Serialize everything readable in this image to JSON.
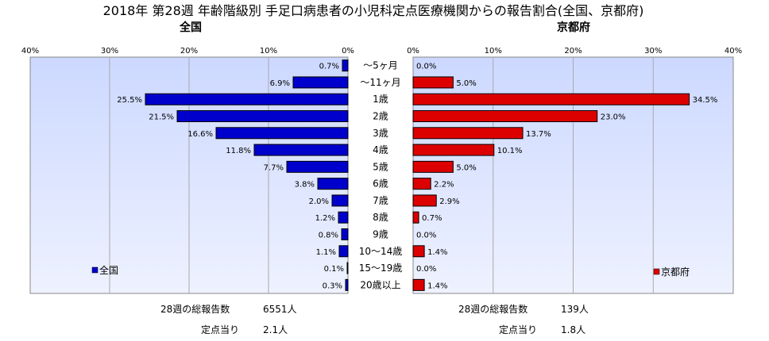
{
  "title": "2018年 第28週 年齢階級別 手足口病患者の小児科定点医療機関からの報告割合(全国、京都府)",
  "chart_data": [
    {
      "type": "bar",
      "orientation": "horizontal",
      "reversed_axis": true,
      "title": "全国",
      "xlim": [
        0,
        40
      ],
      "ticks": [
        "0%",
        "10%",
        "20%",
        "30%",
        "40%"
      ],
      "categories": [
        "～5ヶ月",
        "～11ヶ月",
        "1歳",
        "2歳",
        "3歳",
        "4歳",
        "5歳",
        "6歳",
        "7歳",
        "8歳",
        "9歳",
        "10～14歳",
        "15～19歳",
        "20歳以上"
      ],
      "series": [
        {
          "name": "全国",
          "values": [
            0.7,
            6.9,
            25.5,
            21.5,
            16.6,
            11.8,
            7.7,
            3.8,
            2.0,
            1.2,
            0.8,
            1.1,
            0.1,
            0.3
          ]
        }
      ],
      "value_labels": [
        "0.7%",
        "6.9%",
        "25.5%",
        "21.5%",
        "16.6%",
        "11.8%",
        "7.7%",
        "3.8%",
        "2.0%",
        "1.2%",
        "0.8%",
        "1.1%",
        "0.1%",
        "0.3%"
      ],
      "color": "#0000cc",
      "legend": "bottom-left",
      "grid": true
    },
    {
      "type": "bar",
      "orientation": "horizontal",
      "title": "京都府",
      "xlim": [
        0,
        40
      ],
      "ticks": [
        "0%",
        "10%",
        "20%",
        "30%",
        "40%"
      ],
      "series": [
        {
          "name": "京都府",
          "values": [
            0.0,
            5.0,
            34.5,
            23.0,
            13.7,
            10.1,
            5.0,
            2.2,
            2.9,
            0.7,
            0.0,
            1.4,
            0.0,
            1.4
          ]
        }
      ],
      "value_labels": [
        "0.0%",
        "5.0%",
        "34.5%",
        "23.0%",
        "13.7%",
        "10.1%",
        "5.0%",
        "2.2%",
        "2.9%",
        "0.7%",
        "0.0%",
        "1.4%",
        "0.0%",
        "1.4%"
      ],
      "color": "#dd0000",
      "legend": "bottom-right",
      "grid": true
    }
  ],
  "footer": {
    "national": {
      "total_label": "28週の総報告数",
      "total_value": "6551人",
      "per_label": "定点当り",
      "per_value": "2.1人"
    },
    "kyoto": {
      "total_label": "28週の総報告数",
      "total_value": "139人",
      "per_label": "定点当り",
      "per_value": "1.8人"
    }
  },
  "colors": {
    "plot_bg_top": "#ccd8ff",
    "plot_bg_bottom": "#eef2ff",
    "national_bar": "#0000cc",
    "kyoto_bar": "#dd0000"
  }
}
